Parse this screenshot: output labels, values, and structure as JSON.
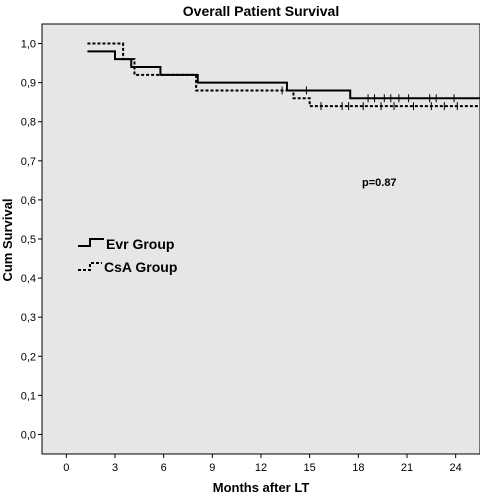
{
  "chart_data": {
    "type": "line",
    "title": "Overall Patient Survival",
    "xlabel": "Months after LT",
    "ylabel": "Cum Survival",
    "xlim": [
      -1.5,
      25.5
    ],
    "ylim": [
      -0.05,
      1.05
    ],
    "x_ticks": [
      0,
      3,
      6,
      9,
      12,
      15,
      18,
      21,
      24
    ],
    "y_ticks": [
      0.0,
      0.1,
      0.2,
      0.3,
      0.4,
      0.5,
      0.6,
      0.7,
      0.8,
      0.9,
      1.0
    ],
    "x_tick_labels": [
      "0",
      "3",
      "6",
      "9",
      "12",
      "15",
      "18",
      "21",
      "24"
    ],
    "y_tick_labels": [
      "0,0",
      "0,1",
      "0,2",
      "0,3",
      "0,4",
      "0,5",
      "0,6",
      "0,7",
      "0,8",
      "0,9",
      "1,0"
    ],
    "grid": false,
    "background": "#e6e6e6",
    "legend_position": "middle-left",
    "annotation": "p=0.87",
    "series": [
      {
        "name": "Evr Group",
        "style": "solid",
        "color": "#000000",
        "step_x": [
          1.3,
          3.0,
          4.0,
          5.8,
          8.1,
          13.6,
          14.4,
          17.5,
          25.5
        ],
        "step_y": [
          0.98,
          0.96,
          0.94,
          0.92,
          0.9,
          0.88,
          0.88,
          0.86,
          0.86
        ],
        "censor_x": [
          14.8,
          18.6,
          19.0,
          19.6,
          20.0,
          20.5,
          21.1,
          22.4,
          22.8,
          23.9
        ],
        "censor_y": [
          0.88,
          0.86,
          0.86,
          0.86,
          0.86,
          0.86,
          0.86,
          0.86,
          0.86,
          0.86
        ]
      },
      {
        "name": "CsA Group",
        "style": "dashed",
        "color": "#000000",
        "step_x": [
          1.3,
          3.5,
          4.2,
          8.0,
          14.0,
          15.0,
          25.5
        ],
        "step_y": [
          1.0,
          0.96,
          0.92,
          0.88,
          0.86,
          0.84,
          0.84
        ],
        "censor_x": [
          13.3,
          15.7,
          17.0,
          17.4,
          18.3,
          19.4,
          20.2,
          21.4,
          22.5,
          23.3,
          24.1
        ],
        "censor_y": [
          0.88,
          0.84,
          0.84,
          0.84,
          0.84,
          0.84,
          0.84,
          0.84,
          0.84,
          0.84,
          0.84
        ]
      }
    ]
  }
}
